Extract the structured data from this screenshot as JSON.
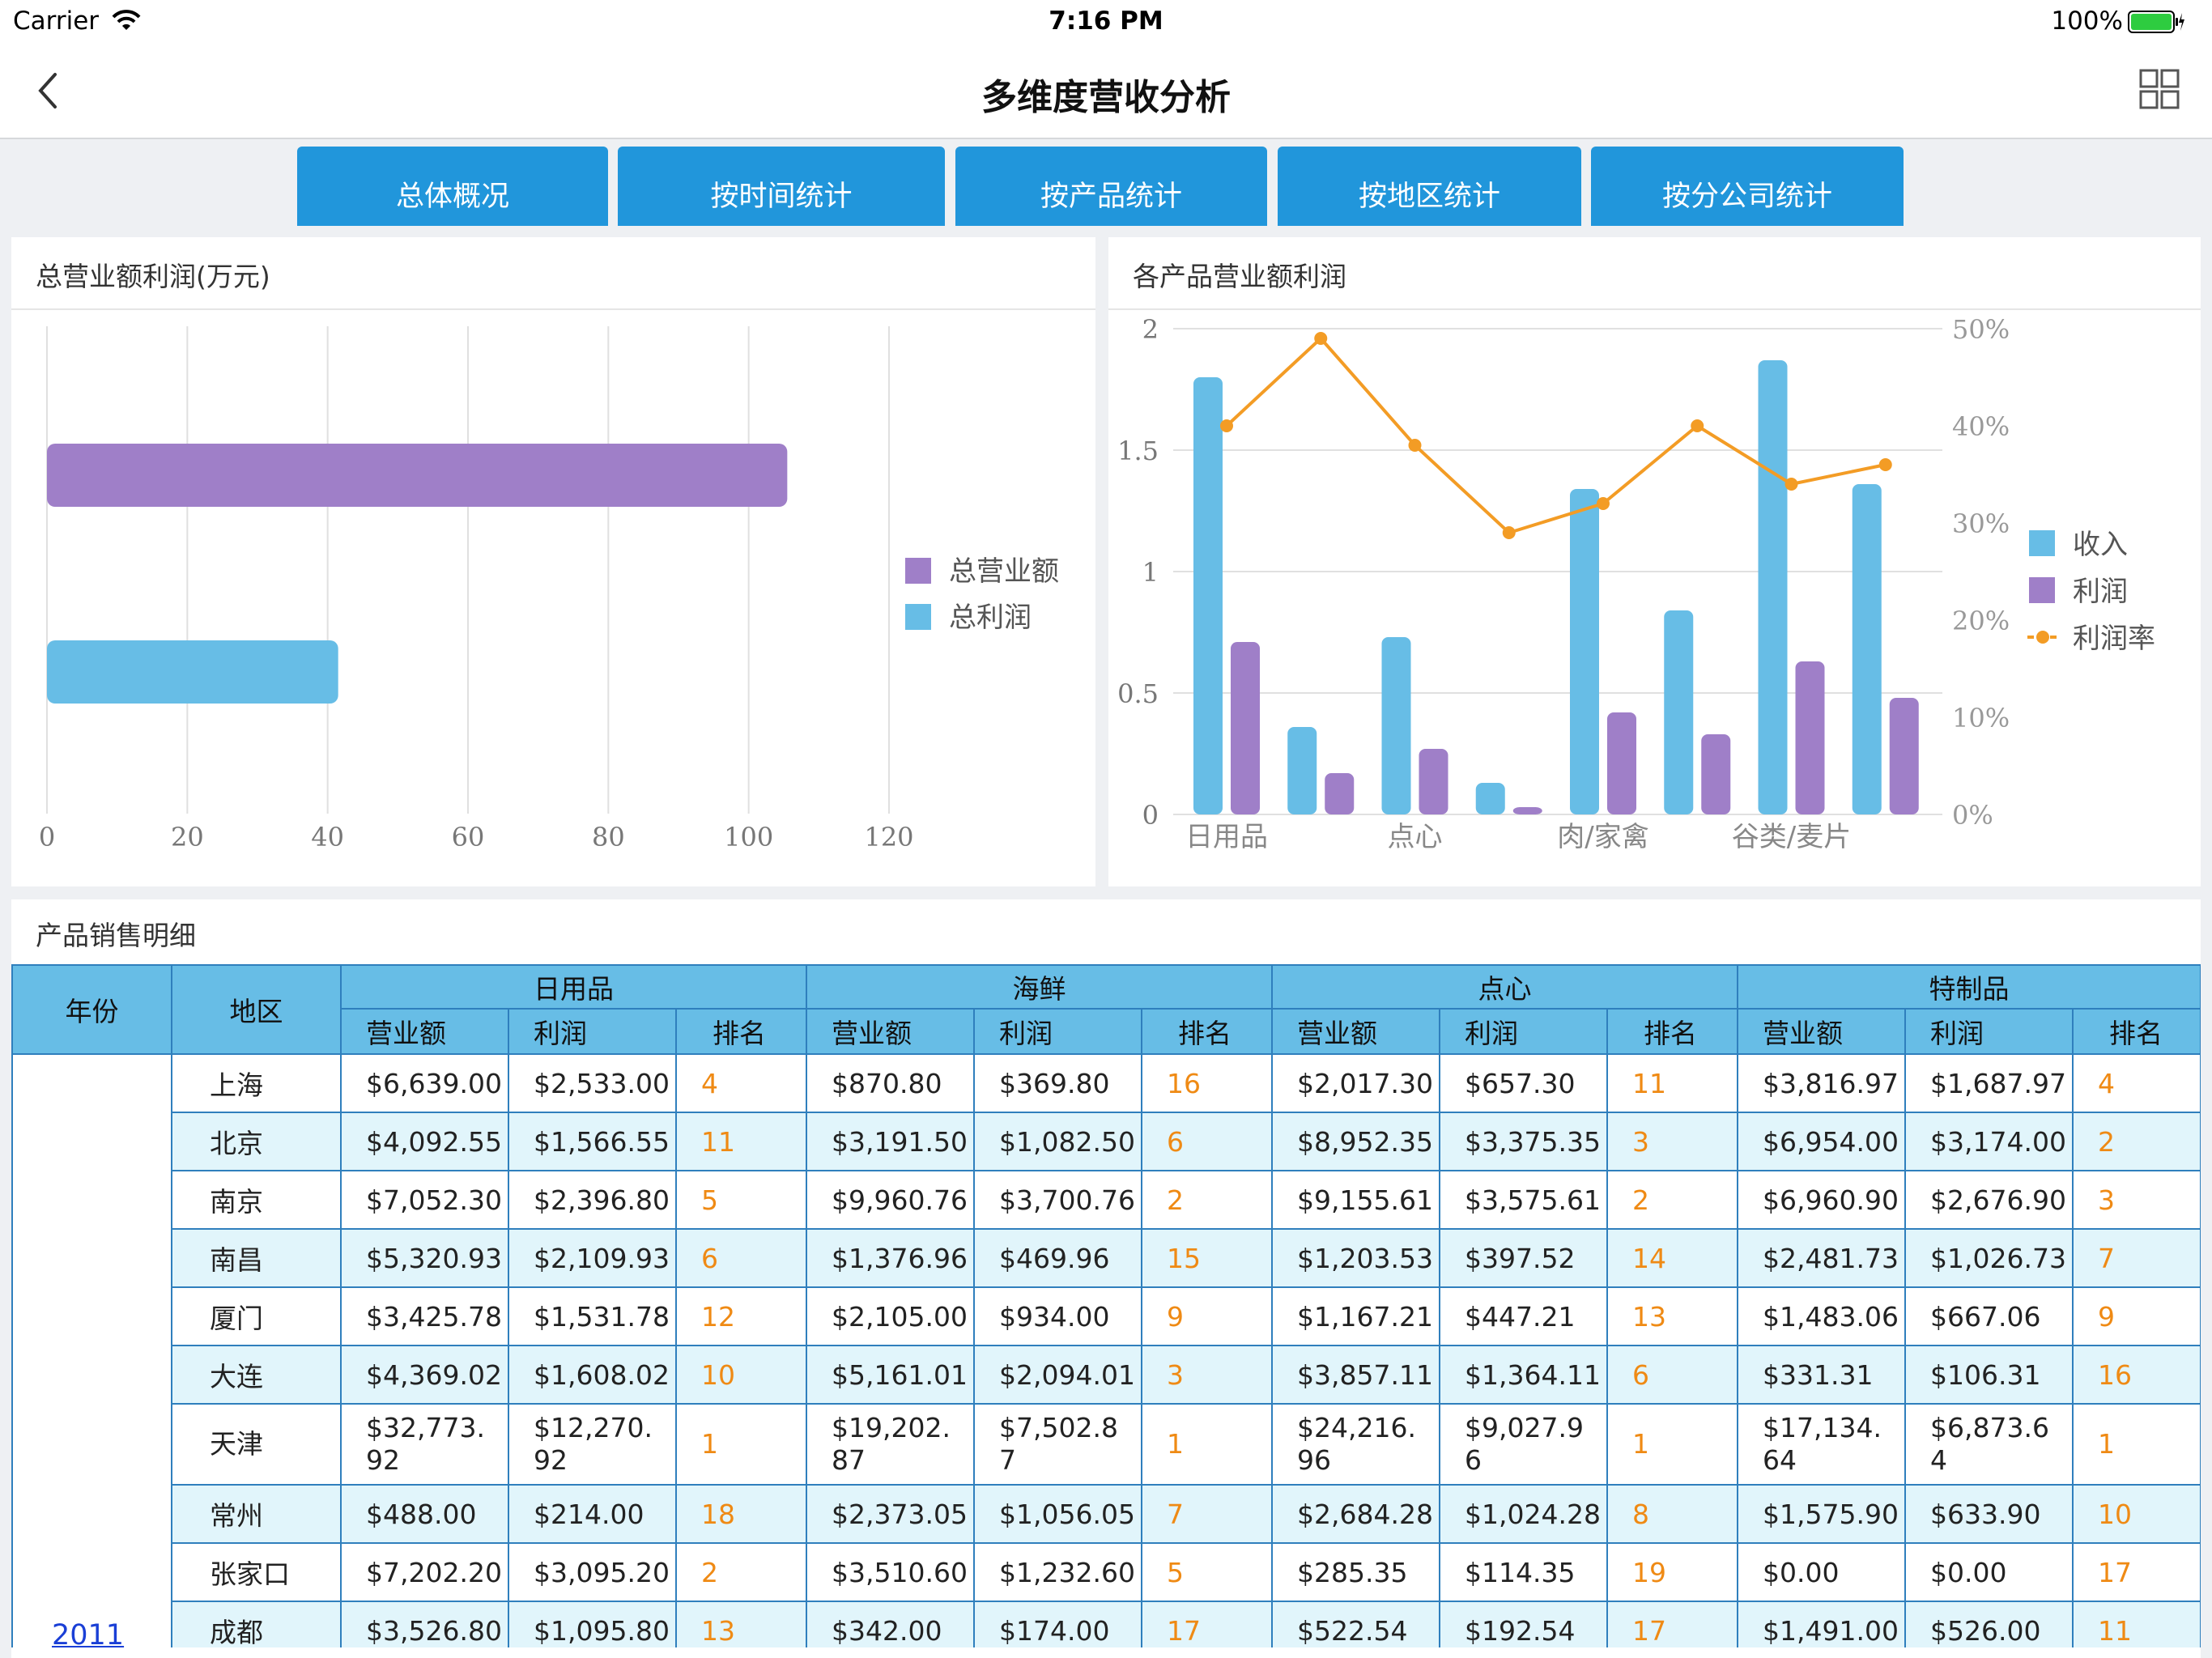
{
  "status_bar": {
    "carrier": "Carrier",
    "time": "7:16 PM",
    "battery": "100%"
  },
  "nav": {
    "title": "多维度营收分析",
    "back_icon": "chevron-left-icon",
    "menu_icon": "grid-icon"
  },
  "tabs": [
    {
      "label": "总体概况"
    },
    {
      "label": "按时间统计"
    },
    {
      "label": "按产品统计"
    },
    {
      "label": "按地区统计"
    },
    {
      "label": "按分公司统计"
    }
  ],
  "chart_data": [
    {
      "type": "bar",
      "orientation": "horizontal",
      "title": "总营业额利润(万元)",
      "series": [
        {
          "name": "总营业额",
          "values": [
            105.5
          ],
          "color": "#9f7fc8"
        },
        {
          "name": "总利润",
          "values": [
            41.5
          ],
          "color": "#67bde6"
        }
      ],
      "xlim": [
        0,
        120
      ],
      "xticks": [
        "0",
        "20",
        "40",
        "60",
        "80",
        "100",
        "120"
      ],
      "grid": true,
      "legend": "right"
    },
    {
      "type": "bar",
      "title": "各产品营业额利润",
      "categories": [
        "日用品",
        "",
        "点心",
        "",
        "肉/家禽",
        "",
        "谷类/麦片",
        ""
      ],
      "series": [
        {
          "name": "收入",
          "type": "bar",
          "values": [
            1.8,
            0.36,
            0.73,
            0.13,
            1.34,
            0.84,
            1.87,
            1.36
          ],
          "color": "#67bde6"
        },
        {
          "name": "利润",
          "type": "bar",
          "values": [
            0.71,
            0.17,
            0.27,
            0.03,
            0.42,
            0.33,
            0.63,
            0.48
          ],
          "color": "#9f7fc8"
        },
        {
          "name": "利润率",
          "type": "line",
          "axis": "right",
          "values": [
            40,
            49,
            38,
            29,
            32,
            40,
            34,
            36
          ],
          "color": "#f39c25"
        }
      ],
      "ylim": [
        0,
        2
      ],
      "yticks": [
        "0",
        "0.5",
        "1",
        "1.5",
        "2"
      ],
      "y2lim": [
        0,
        50
      ],
      "y2ticks": [
        "0%",
        "10%",
        "20%",
        "30%",
        "40%",
        "50%"
      ],
      "grid": true,
      "legend": "right"
    }
  ],
  "table": {
    "title": "产品销售明细",
    "header_year": "年份",
    "header_region": "地区",
    "groups": [
      "日用品",
      "海鲜",
      "点心",
      "特制品"
    ],
    "subheaders": [
      "营业额",
      "利润",
      "排名"
    ],
    "year": "2011",
    "rows": [
      {
        "region": "上海",
        "cells": [
          "$6,639.00",
          "$2,533.00",
          "4",
          "$870.80",
          "$369.80",
          "16",
          "$2,017.30",
          "$657.30",
          "11",
          "$3,816.97",
          "$1,687.97",
          "4"
        ]
      },
      {
        "region": "北京",
        "cells": [
          "$4,092.55",
          "$1,566.55",
          "11",
          "$3,191.50",
          "$1,082.50",
          "6",
          "$8,952.35",
          "$3,375.35",
          "3",
          "$6,954.00",
          "$3,174.00",
          "2"
        ]
      },
      {
        "region": "南京",
        "cells": [
          "$7,052.30",
          "$2,396.80",
          "5",
          "$9,960.76",
          "$3,700.76",
          "2",
          "$9,155.61",
          "$3,575.61",
          "2",
          "$6,960.90",
          "$2,676.90",
          "3"
        ]
      },
      {
        "region": "南昌",
        "cells": [
          "$5,320.93",
          "$2,109.93",
          "6",
          "$1,376.96",
          "$469.96",
          "15",
          "$1,203.53",
          "$397.52",
          "14",
          "$2,481.73",
          "$1,026.73",
          "7"
        ]
      },
      {
        "region": "厦门",
        "cells": [
          "$3,425.78",
          "$1,531.78",
          "12",
          "$2,105.00",
          "$934.00",
          "9",
          "$1,167.21",
          "$447.21",
          "13",
          "$1,483.06",
          "$667.06",
          "9"
        ]
      },
      {
        "region": "大连",
        "cells": [
          "$4,369.02",
          "$1,608.02",
          "10",
          "$5,161.01",
          "$2,094.01",
          "3",
          "$3,857.11",
          "$1,364.11",
          "6",
          "$331.31",
          "$106.31",
          "16"
        ]
      },
      {
        "region": "天津",
        "cells": [
          "$32,773.92",
          "$12,270.92",
          "1",
          "$19,202.87",
          "$7,502.87",
          "1",
          "$24,216.96",
          "$9,027.96",
          "1",
          "$17,134.64",
          "$6,873.64",
          "1"
        ]
      },
      {
        "region": "常州",
        "cells": [
          "$488.00",
          "$214.00",
          "18",
          "$2,373.05",
          "$1,056.05",
          "7",
          "$2,684.28",
          "$1,024.28",
          "8",
          "$1,575.90",
          "$633.90",
          "10"
        ]
      },
      {
        "region": "张家口",
        "cells": [
          "$7,202.20",
          "$3,095.20",
          "2",
          "$3,510.60",
          "$1,232.60",
          "5",
          "$285.35",
          "$114.35",
          "19",
          "$0.00",
          "$0.00",
          "17"
        ]
      },
      {
        "region": "成都",
        "cells": [
          "$3,526.80",
          "$1,095.80",
          "13",
          "$342.00",
          "$174.00",
          "17",
          "$522.54",
          "$192.54",
          "17",
          "$1,491.00",
          "$526.00",
          "11"
        ]
      }
    ]
  }
}
